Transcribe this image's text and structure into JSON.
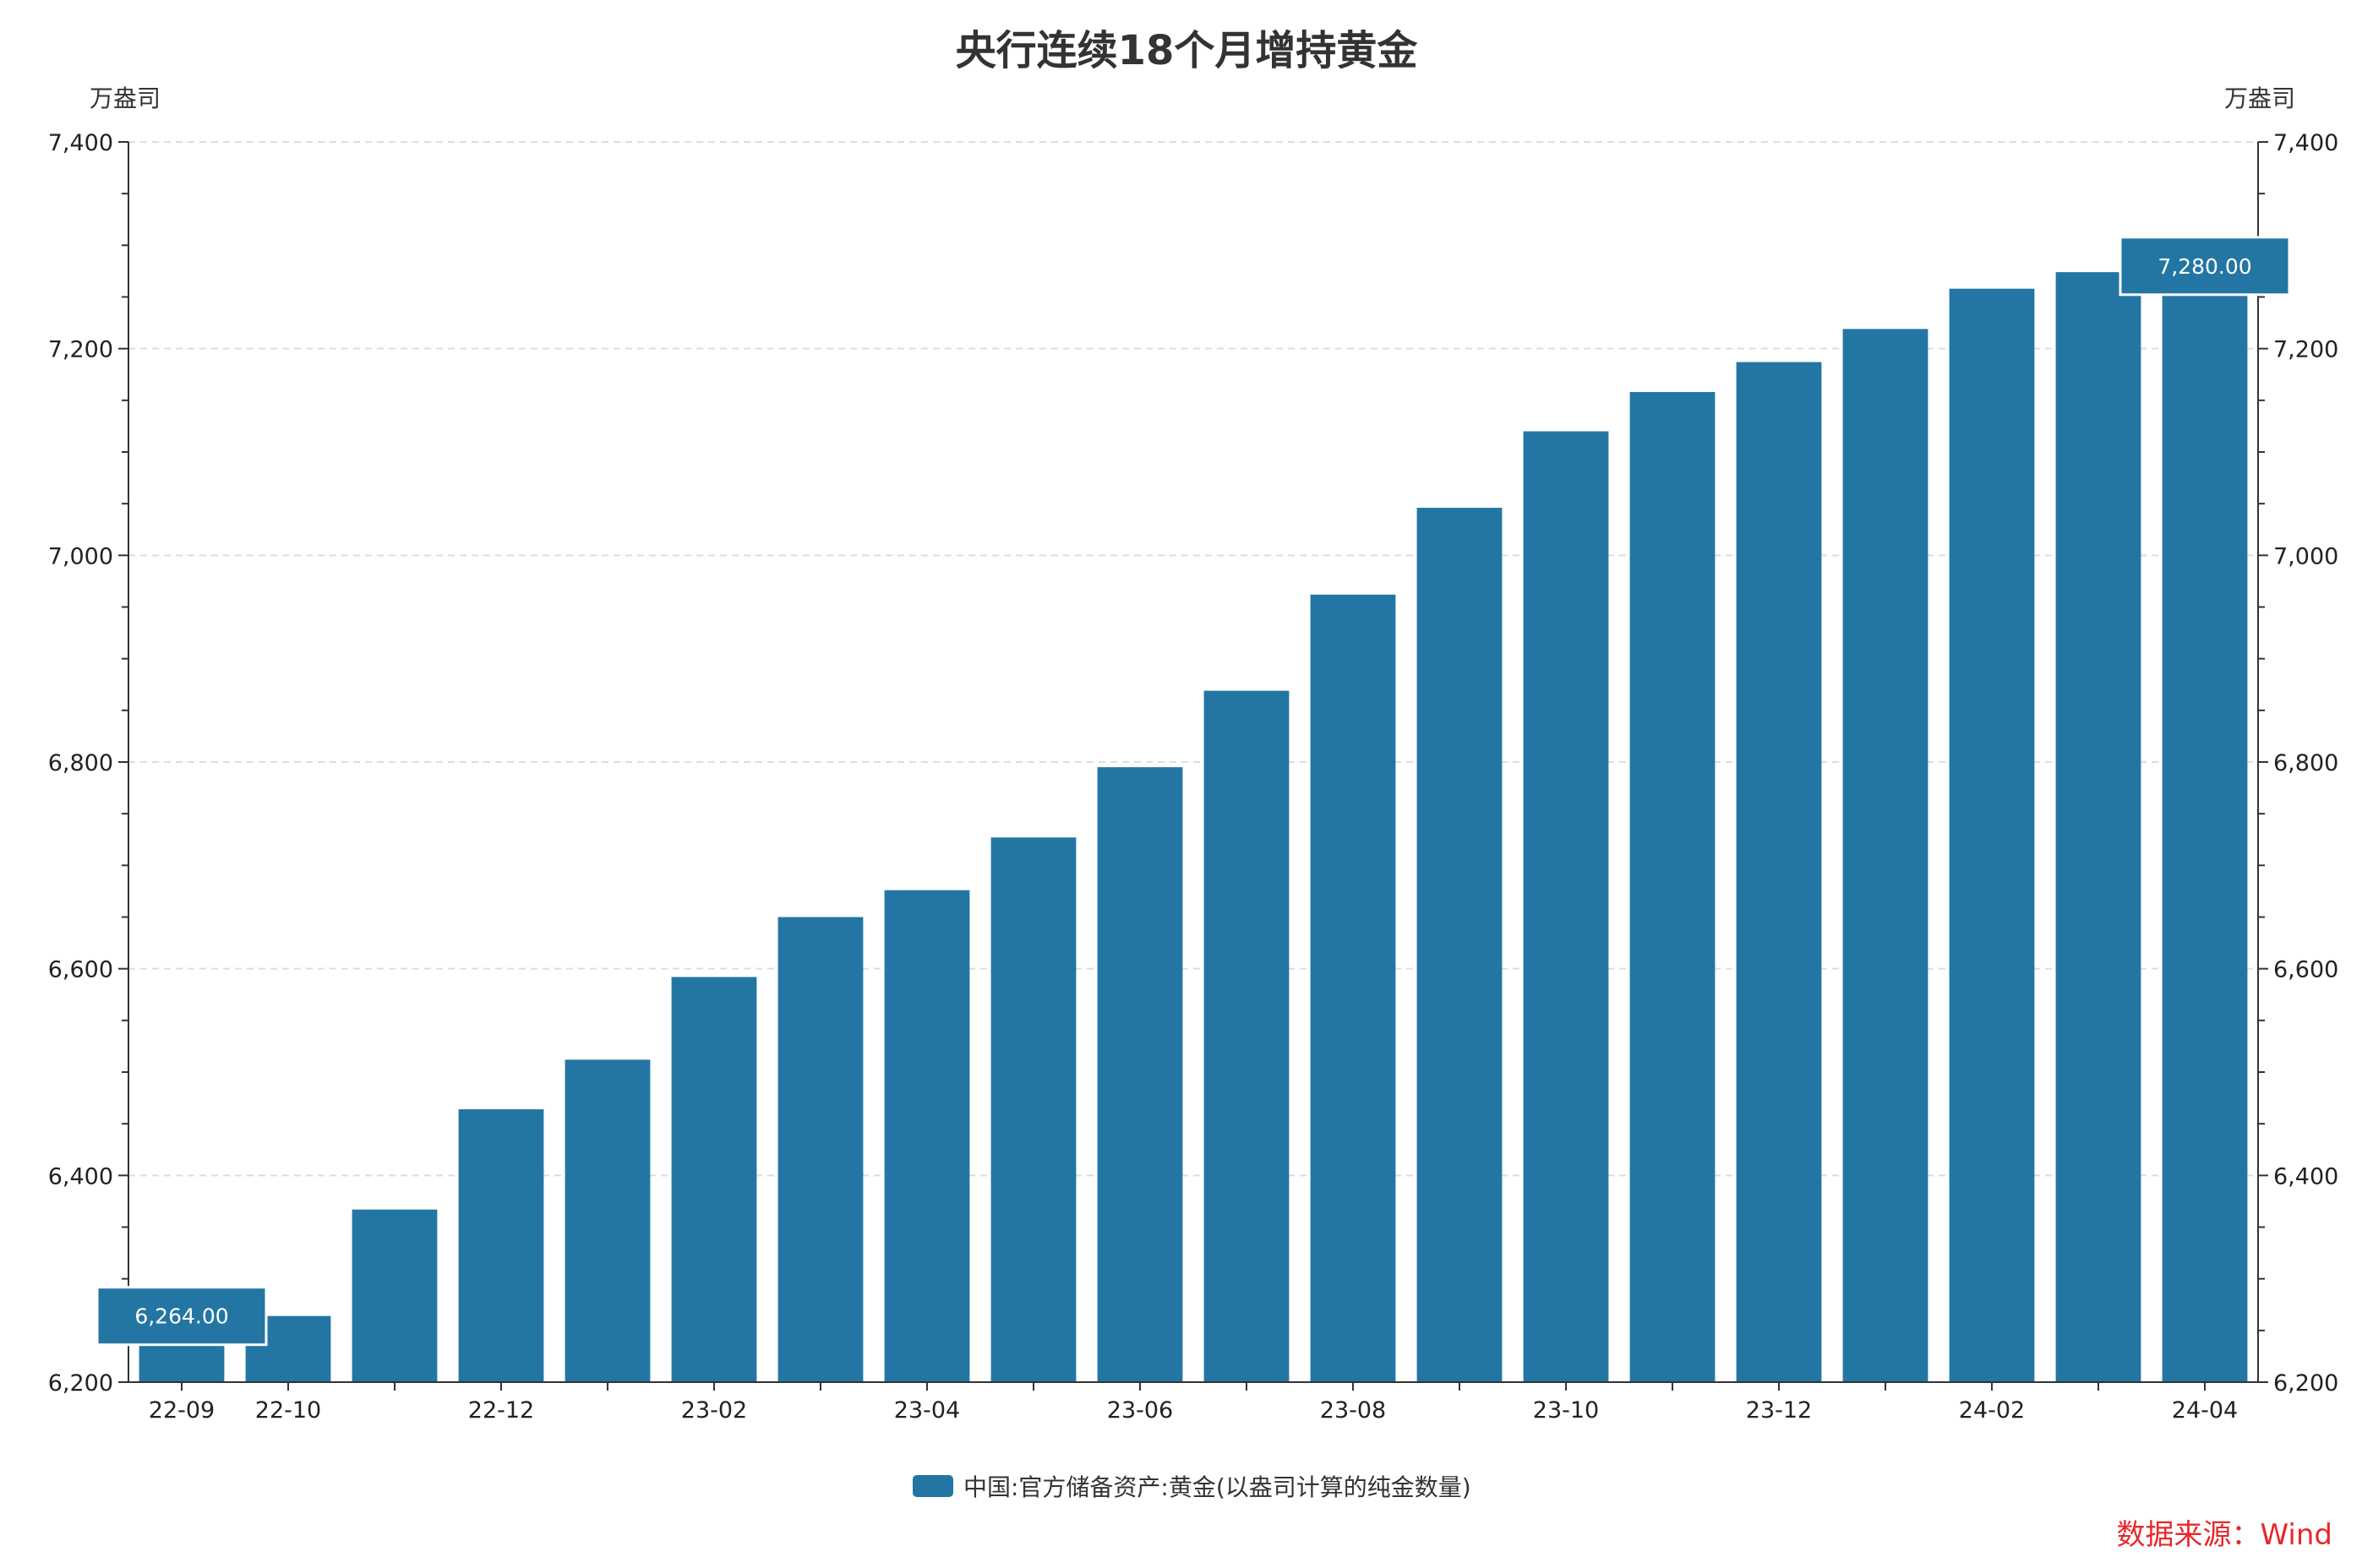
{
  "chart_data": {
    "type": "bar",
    "title": "央行连续18个月增持黄金",
    "y_unit_left": "万盎司",
    "y_unit_right": "万盎司",
    "ylim": [
      6200,
      7400
    ],
    "yticks": [
      6200,
      6400,
      6600,
      6800,
      7000,
      7200,
      7400
    ],
    "ytick_labels": [
      "6,200",
      "6,400",
      "6,600",
      "6,800",
      "7,000",
      "7,200",
      "7,400"
    ],
    "categories": [
      "22-09",
      "22-10",
      "22-11",
      "22-12",
      "23-01",
      "23-02",
      "23-03",
      "23-04",
      "23-05",
      "23-06",
      "23-07",
      "23-08",
      "23-09",
      "23-10",
      "23-11",
      "23-12",
      "24-01",
      "24-02",
      "24-03",
      "24-04"
    ],
    "x_tick_labels_shown": [
      "22-09",
      "22-10",
      "22-12",
      "23-02",
      "23-04",
      "23-06",
      "23-08",
      "23-10",
      "23-12",
      "24-02",
      "24-04"
    ],
    "series": [
      {
        "name": "中国:官方储备资产:黄金(以盎司计算的纯金数量)",
        "values": [
          6264,
          6264,
          6367,
          6464,
          6512,
          6592,
          6650,
          6676,
          6727,
          6795,
          6869,
          6962,
          7046,
          7120,
          7158,
          7187,
          7219,
          7258,
          7274,
          7280
        ]
      }
    ],
    "annotations": [
      {
        "category": "22-09",
        "label": "6,264.00"
      },
      {
        "category": "24-04",
        "label": "7,280.00"
      }
    ],
    "grid": true,
    "legend_position": "bottom-center",
    "bar_color": "#2376a3",
    "source_note": "数据来源：Wind",
    "source_color": "#e8282b"
  }
}
